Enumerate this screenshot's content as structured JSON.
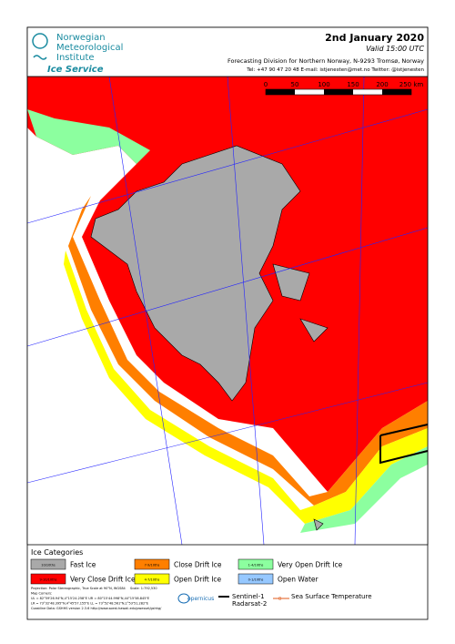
{
  "header": {
    "institute": [
      "Norwegian",
      "Meteorological",
      "Institute"
    ],
    "service": "Ice Service",
    "date": "2nd January 2020",
    "valid": "Valid 15:00 UTC",
    "division": "Forecasting Division for Northern Norway, N-9293 Tromsø, Norway",
    "contact": "Tel: +47 90 47 20 48   E-mail: istjenesten@met.no   Twitter: @istjenesten"
  },
  "scale_bar": {
    "labels": [
      "0",
      "50",
      "100",
      "150",
      "200",
      "250 km"
    ]
  },
  "legend": {
    "title": "Ice Categories",
    "items": [
      {
        "code": "10/10ths",
        "label": "Fast Ice",
        "color": "#a9a9a9"
      },
      {
        "code": "7-9/10ths",
        "label": "Close Drift Ice",
        "color": "#ff7f00"
      },
      {
        "code": "1-4/10ths",
        "label": "Very Open Drift Ice",
        "color": "#8cff9f"
      },
      {
        "code": "9-10/10ths",
        "label": "Very Close Drift Ice",
        "color": "#ff0000"
      },
      {
        "code": "4-7/10ths",
        "label": "Open Drift Ice",
        "color": "#ffff00"
      },
      {
        "code": "0-1/10ths",
        "label": "Open Water",
        "color": "#96c8ff"
      }
    ],
    "notes": [
      "Projection: Polar Stereographic, True Scale at 90°N, WGS84",
      "Map Corners:",
      "UL = 82°59'26.94\"N,4°15'24.258\"E    UR = 80°15'44.998\"N,44°15'58.845\"E",
      "LR = 73°32'48.395\"N,4°45'57.155\"E    LL = 73°52'48.561\"N,1°53'51.282\"E",
      "Coastline Data: GSHHS version 2.3.6 http://www.soest.hawaii.edu/pwessel/gshhg/"
    ],
    "scale": "Scale: 1:792,530",
    "logo": "opernicus",
    "sentinel": "Sentinel-1",
    "radarsat": "Radarsat-2",
    "sst": "Sea Surface Temperature"
  }
}
